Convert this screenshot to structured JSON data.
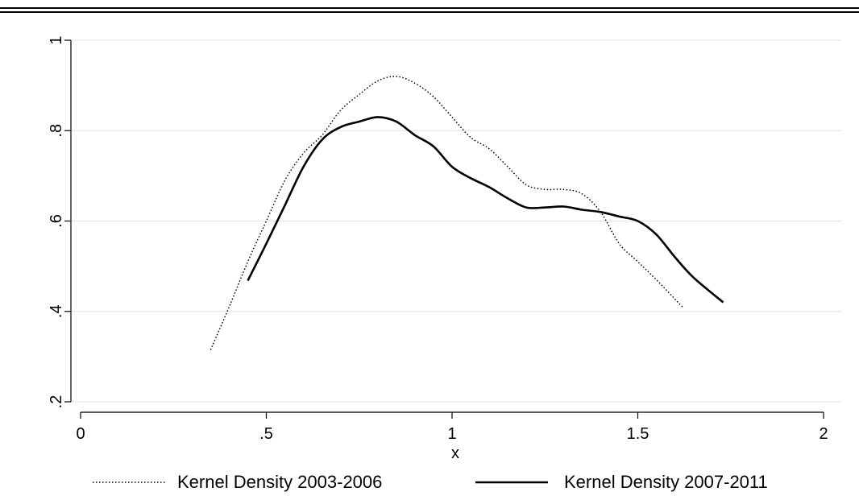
{
  "chart_data": {
    "type": "line",
    "xlabel": "x",
    "ylabel": "",
    "xlim": [
      0,
      2
    ],
    "ylim": [
      0.2,
      1
    ],
    "x_ticks": [
      0,
      0.5,
      1,
      1.5,
      2
    ],
    "x_tick_labels": [
      "0",
      ".5",
      "1",
      "1.5",
      "2"
    ],
    "y_ticks": [
      0.2,
      0.4,
      0.6,
      0.8,
      1
    ],
    "y_tick_labels": [
      ".2",
      ".4",
      ".6",
      ".8",
      "1"
    ],
    "grid": "horizontal",
    "legend_position": "bottom",
    "series": [
      {
        "name": "Kernel Density 2003-2006",
        "style": "dotted",
        "color": "#000000",
        "x": [
          0.35,
          0.4,
          0.45,
          0.5,
          0.55,
          0.6,
          0.65,
          0.7,
          0.75,
          0.8,
          0.85,
          0.9,
          0.95,
          1.0,
          1.05,
          1.1,
          1.15,
          1.2,
          1.25,
          1.3,
          1.35,
          1.4,
          1.45,
          1.5,
          1.55,
          1.62
        ],
        "y": [
          0.315,
          0.41,
          0.51,
          0.6,
          0.69,
          0.75,
          0.79,
          0.845,
          0.88,
          0.91,
          0.92,
          0.905,
          0.875,
          0.83,
          0.785,
          0.76,
          0.72,
          0.68,
          0.67,
          0.67,
          0.66,
          0.62,
          0.55,
          0.51,
          0.47,
          0.41
        ]
      },
      {
        "name": "Kernel Density 2007-2011",
        "style": "solid",
        "color": "#000000",
        "x": [
          0.45,
          0.5,
          0.55,
          0.6,
          0.65,
          0.7,
          0.75,
          0.8,
          0.85,
          0.9,
          0.95,
          1.0,
          1.05,
          1.1,
          1.15,
          1.2,
          1.25,
          1.3,
          1.35,
          1.4,
          1.45,
          1.5,
          1.55,
          1.6,
          1.65,
          1.73
        ],
        "y": [
          0.468,
          0.55,
          0.635,
          0.72,
          0.78,
          0.808,
          0.82,
          0.83,
          0.82,
          0.79,
          0.765,
          0.72,
          0.695,
          0.675,
          0.65,
          0.63,
          0.63,
          0.632,
          0.625,
          0.62,
          0.61,
          0.6,
          0.57,
          0.52,
          0.475,
          0.42
        ]
      }
    ]
  }
}
